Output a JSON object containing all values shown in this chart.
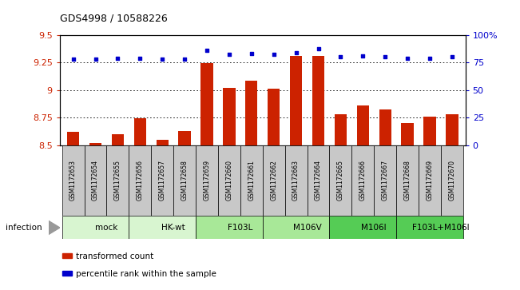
{
  "title": "GDS4998 / 10588226",
  "samples": [
    "GSM1172653",
    "GSM1172654",
    "GSM1172655",
    "GSM1172656",
    "GSM1172657",
    "GSM1172658",
    "GSM1172659",
    "GSM1172660",
    "GSM1172661",
    "GSM1172662",
    "GSM1172663",
    "GSM1172664",
    "GSM1172665",
    "GSM1172666",
    "GSM1172667",
    "GSM1172668",
    "GSM1172669",
    "GSM1172670"
  ],
  "bar_values": [
    8.62,
    8.52,
    8.6,
    8.74,
    8.55,
    8.63,
    9.24,
    9.02,
    9.08,
    9.01,
    9.31,
    9.31,
    8.78,
    8.86,
    8.82,
    8.7,
    8.76,
    8.78
  ],
  "dot_values": [
    78,
    78,
    79,
    79,
    78,
    78,
    86,
    82,
    83,
    82,
    84,
    87,
    80,
    81,
    80,
    79,
    79,
    80
  ],
  "groups": [
    {
      "label": "mock",
      "start": 0,
      "end": 3,
      "color": "#d8f5d0"
    },
    {
      "label": "HK-wt",
      "start": 3,
      "end": 6,
      "color": "#d8f5d0"
    },
    {
      "label": "F103L",
      "start": 6,
      "end": 9,
      "color": "#a8e898"
    },
    {
      "label": "M106V",
      "start": 9,
      "end": 12,
      "color": "#a8e898"
    },
    {
      "label": "M106I",
      "start": 12,
      "end": 15,
      "color": "#55cc55"
    },
    {
      "label": "F103L+M106I",
      "start": 15,
      "end": 18,
      "color": "#55cc55"
    }
  ],
  "ylim_left": [
    8.5,
    9.5
  ],
  "ylim_right": [
    0,
    100
  ],
  "yticks_left": [
    8.5,
    8.75,
    9.0,
    9.25,
    9.5
  ],
  "ytick_labels_left": [
    "8.5",
    "8.75",
    "9",
    "9.25",
    "9.5"
  ],
  "yticks_right": [
    0,
    25,
    50,
    75,
    100
  ],
  "ytick_labels_right": [
    "0",
    "25",
    "50",
    "75",
    "100%"
  ],
  "bar_color": "#cc2200",
  "dot_color": "#0000cc",
  "bg_color": "#ffffff",
  "plot_bg": "#ffffff",
  "grid_color": "#000000",
  "ytick_color_left": "#cc2200",
  "ytick_color_right": "#0000cc",
  "infection_label": "infection",
  "legend_bar_label": "transformed count",
  "legend_dot_label": "percentile rank within the sample",
  "sample_box_color": "#c8c8c8",
  "bar_width": 0.55
}
